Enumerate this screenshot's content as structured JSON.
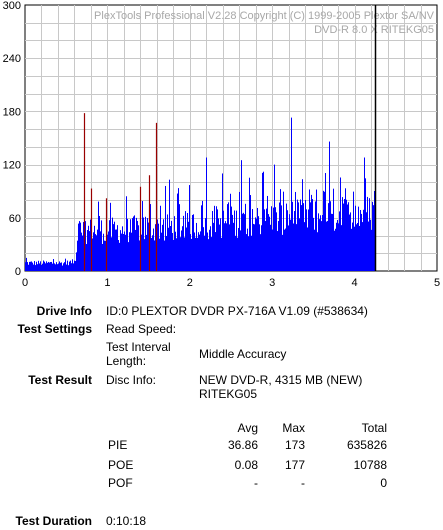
{
  "chart_data": {
    "type": "bar",
    "watermark": [
      "PlexTools Professional V2.28 Copyright (C) 1999-2005 Plextor SA/NV",
      "DVD-R    8.0 X    RITEKG05"
    ],
    "x_ticks": [
      "0",
      "1",
      "2",
      "3",
      "4",
      "5"
    ],
    "y_ticks": [
      "0",
      "60",
      "120",
      "180",
      "240",
      "300"
    ],
    "xlim": [
      0,
      5
    ],
    "ylim": [
      0,
      300
    ],
    "end_x": 4.25,
    "bar_color": "#0000ff",
    "spike_color": "#990000",
    "spikes": [
      {
        "x": 0.71,
        "y": 178
      },
      {
        "x": 0.8,
        "y": 93
      },
      {
        "x": 0.98,
        "y": 82
      },
      {
        "x": 1.39,
        "y": 95
      },
      {
        "x": 1.51,
        "y": 108
      },
      {
        "x": 1.59,
        "y": 167
      }
    ],
    "profile": [
      {
        "x": 0.0,
        "y": 8
      },
      {
        "x": 0.5,
        "y": 8
      },
      {
        "x": 0.62,
        "y": 10
      },
      {
        "x": 0.65,
        "y": 55
      },
      {
        "x": 1.0,
        "y": 55
      },
      {
        "x": 2.0,
        "y": 62
      },
      {
        "x": 3.0,
        "y": 72
      },
      {
        "x": 3.6,
        "y": 75
      },
      {
        "x": 4.25,
        "y": 80
      }
    ],
    "peaks": [
      {
        "x": 3.23,
        "y": 173
      },
      {
        "x": 3.7,
        "y": 146
      },
      {
        "x": 2.2,
        "y": 128
      },
      {
        "x": 2.63,
        "y": 125
      },
      {
        "x": 3.03,
        "y": 120
      },
      {
        "x": 2.9,
        "y": 112
      },
      {
        "x": 4.12,
        "y": 128
      },
      {
        "x": 1.75,
        "y": 103
      },
      {
        "x": 2.4,
        "y": 110
      }
    ]
  },
  "info": {
    "drive_label": "Drive Info",
    "drive_value": "ID:0 PLEXTOR DVDR PX-716A V1.09 (#538634)",
    "settings_label": "Test Settings",
    "read_speed_label": "Read Speed:",
    "interval_label_1": "Test Interval",
    "interval_label_2": "Length:",
    "interval_value": "Middle Accuracy",
    "result_label": "Test Result",
    "disc_label": "Disc Info:",
    "disc_value_1": "NEW DVD-R, 4315 MB (NEW)",
    "disc_value_2": "RITEKG05",
    "duration_label": "Test Duration",
    "duration_value": "0:10:18"
  },
  "table": {
    "headers": [
      "Avg",
      "Max",
      "Total"
    ],
    "rows": [
      {
        "name": "PIE",
        "avg": "36.86",
        "max": "173",
        "total": "635826"
      },
      {
        "name": "POE",
        "avg": "0.08",
        "max": "177",
        "total": "10788"
      },
      {
        "name": "POF",
        "avg": "-",
        "max": "-",
        "total": "0"
      }
    ]
  }
}
